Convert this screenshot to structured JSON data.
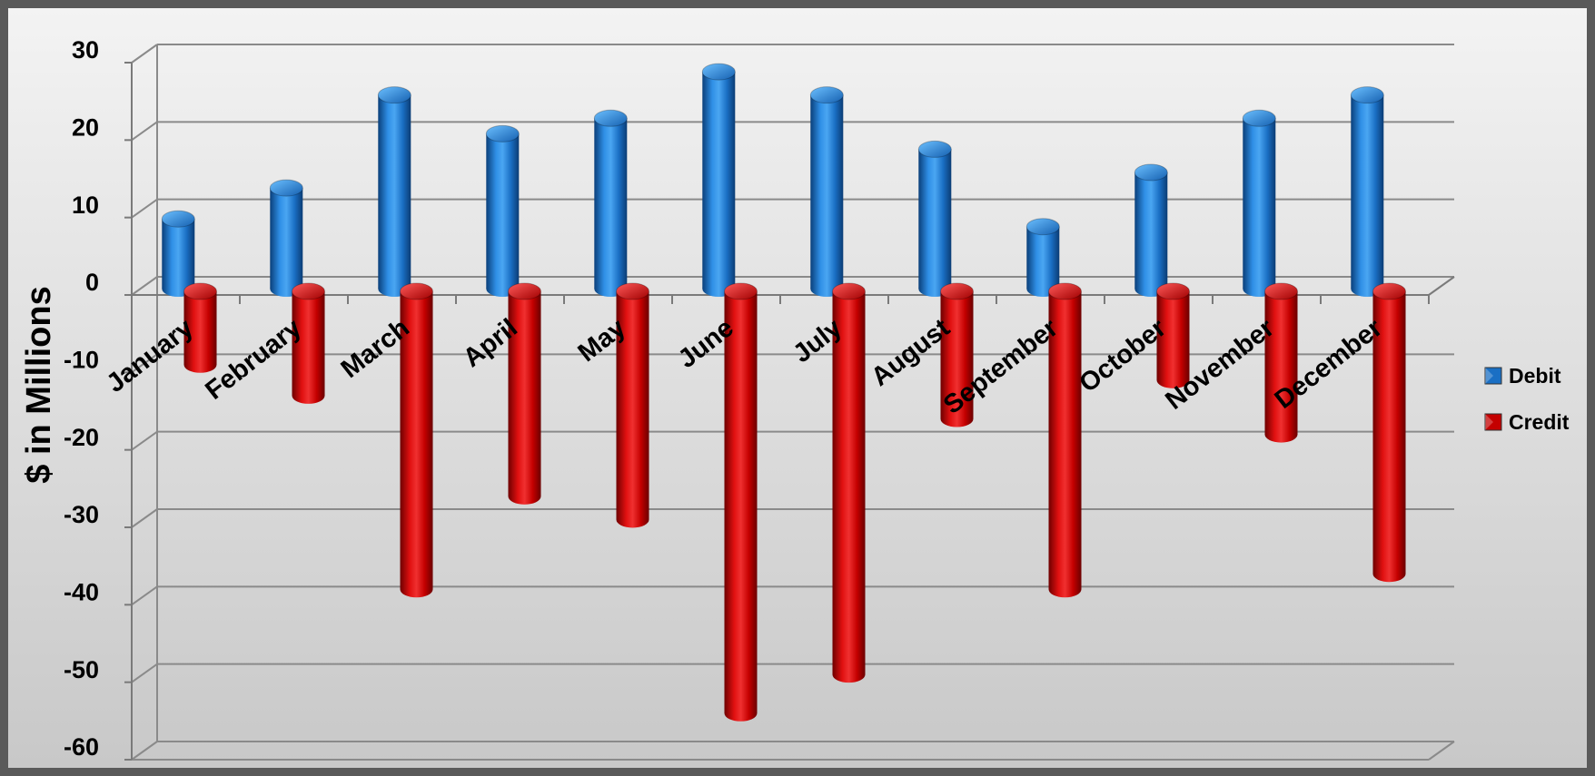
{
  "chart_data": {
    "type": "bar",
    "categories": [
      "January",
      "February",
      "March",
      "April",
      "May",
      "June",
      "July",
      "August",
      "September",
      "October",
      "November",
      "December"
    ],
    "series": [
      {
        "name": "Debit",
        "color": "#1a6fc4",
        "values": [
          9,
          13,
          25,
          20,
          22,
          28,
          25,
          18,
          8,
          15,
          22,
          25
        ]
      },
      {
        "name": "Credit",
        "color": "#c40000",
        "values": [
          -9,
          -13,
          -38,
          -26,
          -29,
          -54,
          -49,
          -16,
          -38,
          -11,
          -18,
          -36
        ]
      }
    ],
    "title": "",
    "xlabel": "",
    "ylabel": "$ in Millions",
    "ylim": [
      -60,
      30
    ],
    "yticks": [
      30,
      20,
      10,
      0,
      -10,
      -20,
      -30,
      -40,
      -50,
      -60
    ],
    "grid": true,
    "legend": "right",
    "style": "3d-cylinder"
  }
}
